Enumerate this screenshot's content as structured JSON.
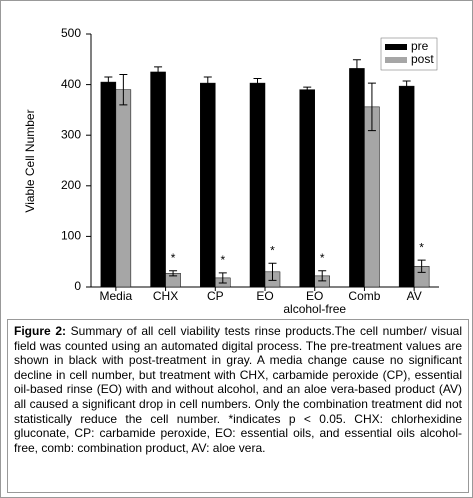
{
  "chart_data": {
    "type": "bar",
    "y_label": "Viable Cell Number",
    "categories": [
      "Media",
      "CHX",
      "CP",
      "EO",
      [
        "EO",
        "alcohol-free"
      ],
      "Comb",
      "AV"
    ],
    "series": [
      {
        "name": "pre",
        "color": "#000000",
        "values": [
          405,
          425,
          403,
          403,
          390,
          432,
          397
        ],
        "errors": [
          10,
          10,
          12,
          9,
          5,
          17,
          10
        ]
      },
      {
        "name": "post",
        "color": "#a6a6a6",
        "values": [
          390,
          27,
          18,
          30,
          22,
          356,
          41
        ],
        "errors": [
          30,
          5,
          10,
          17,
          10,
          47,
          12
        ],
        "significance": [
          null,
          "*",
          "*",
          "*",
          "*",
          null,
          "*"
        ]
      }
    ],
    "ylim": [
      0,
      500
    ],
    "yticks": [
      0,
      100,
      200,
      300,
      400,
      500
    ],
    "legend": "top-right",
    "grid": false
  },
  "caption": {
    "label": "Figure 2:",
    "text": "Summary of all cell viability tests rinse products.The cell number/ visual field was counted using an automated digital process. The pre-treatment values are shown in black with post-treatment in gray. A media change cause no significant decline in cell number, but treatment with CHX, carbamide peroxide (CP), essential oil-based rinse (EO) with and without alcohol, and an aloe vera-based product (AV) all caused a significant drop in cell numbers. Only the combination treatment did not statistically reduce the cell number. *indicates p < 0.05. CHX: chlorhexidine gluconate, CP: carbamide peroxide, EO: essential oils, and essential oils alcohol-free, comb: combination product, AV: aloe vera."
  }
}
